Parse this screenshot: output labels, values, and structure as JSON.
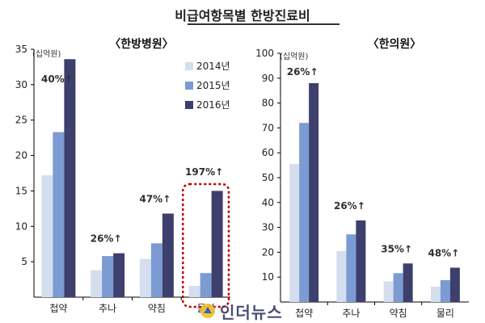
{
  "title": "비급여항목별 한방진료비",
  "legend": [
    "2014년",
    "2015년",
    "2016년"
  ],
  "colors": {
    "series": [
      "#d5deee",
      "#7b9bd2",
      "#3d3f6c"
    ],
    "highlight": "#c00000",
    "axis": "#000000",
    "text": "#222222",
    "annotation": "#2f2f2f"
  },
  "watermark": {
    "text": "인더뉴스",
    "logo": "logo-icon"
  },
  "chart_data": [
    {
      "type": "bar",
      "title": "〈한방병원〉",
      "unit": "(십억원)",
      "ylim": [
        0,
        35
      ],
      "yticks": [
        5,
        10,
        15,
        20,
        25,
        30,
        35
      ],
      "categories": [
        "첩약",
        "추나",
        "약침",
        "물리"
      ],
      "series": [
        {
          "name": "2014년",
          "values": [
            17.2,
            3.8,
            5.4,
            1.6
          ]
        },
        {
          "name": "2015년",
          "values": [
            23.3,
            5.8,
            7.6,
            3.4
          ]
        },
        {
          "name": "2016년",
          "values": [
            33.6,
            6.2,
            11.8,
            15.0
          ]
        }
      ],
      "annotations": [
        "40%↑",
        "26%↑",
        "47%↑",
        "197%↑"
      ],
      "highlight_category": "물리",
      "legend_placement": "top-right",
      "grid": false
    },
    {
      "type": "bar",
      "title": "〈한의원〉",
      "unit": "(십억원)",
      "ylim": [
        0,
        100
      ],
      "yticks": [
        10,
        20,
        30,
        40,
        50,
        60,
        70,
        80,
        90,
        100
      ],
      "categories": [
        "첩약",
        "추나",
        "약침",
        "물리"
      ],
      "series": [
        {
          "name": "2014년",
          "values": [
            55.5,
            20.5,
            8.3,
            6.2
          ]
        },
        {
          "name": "2015년",
          "values": [
            72.0,
            27.2,
            11.6,
            8.8
          ]
        },
        {
          "name": "2016년",
          "values": [
            88.0,
            32.8,
            15.5,
            13.8
          ]
        }
      ],
      "annotations": [
        "26%↑",
        "26%↑",
        "35%↑",
        "48%↑"
      ],
      "grid": false
    }
  ]
}
